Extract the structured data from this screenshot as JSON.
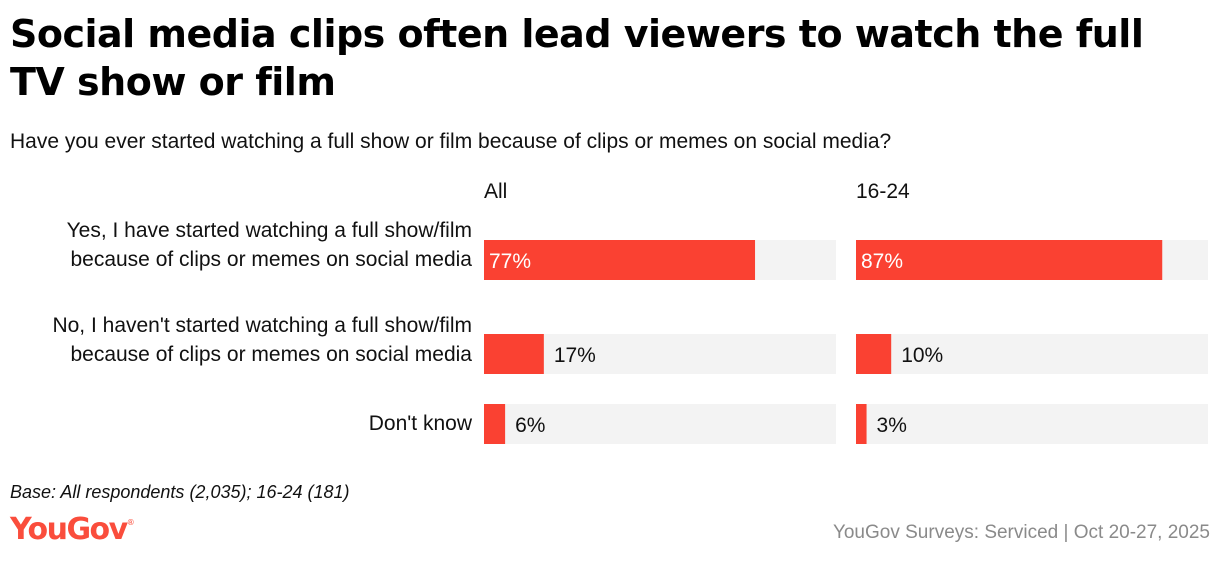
{
  "chart_data": {
    "type": "bar",
    "orientation": "horizontal",
    "title": "Social media clips often lead viewers to watch the full TV show or film",
    "subtitle": "Have you ever started watching a full show or film because of clips or memes on social media?",
    "categories": [
      "Yes, I have started watching a full show/film because of clips or memes on social media",
      "No, I haven't started watching a full show/film because of clips or memes on social media",
      "Don't know"
    ],
    "series": [
      {
        "name": "All",
        "values": [
          77,
          17,
          6
        ],
        "labels": [
          "77%",
          "17%",
          "6%"
        ]
      },
      {
        "name": "16-24",
        "values": [
          87,
          10,
          3
        ],
        "labels": [
          "87%",
          "10%",
          "3%"
        ]
      }
    ],
    "xlim": [
      0,
      100
    ],
    "unit": "%",
    "colors": {
      "bar": "#fa4132",
      "track": "#f3f3f3",
      "label_inside": "#ffffff",
      "label_outside": "#111111"
    }
  },
  "footer": {
    "base": "Base: All respondents (2,035); 16-24 (181)",
    "logo": "YouGov",
    "logo_mark": "®",
    "source": "YouGov Surveys: Serviced | Oct 20-27, 2025"
  }
}
